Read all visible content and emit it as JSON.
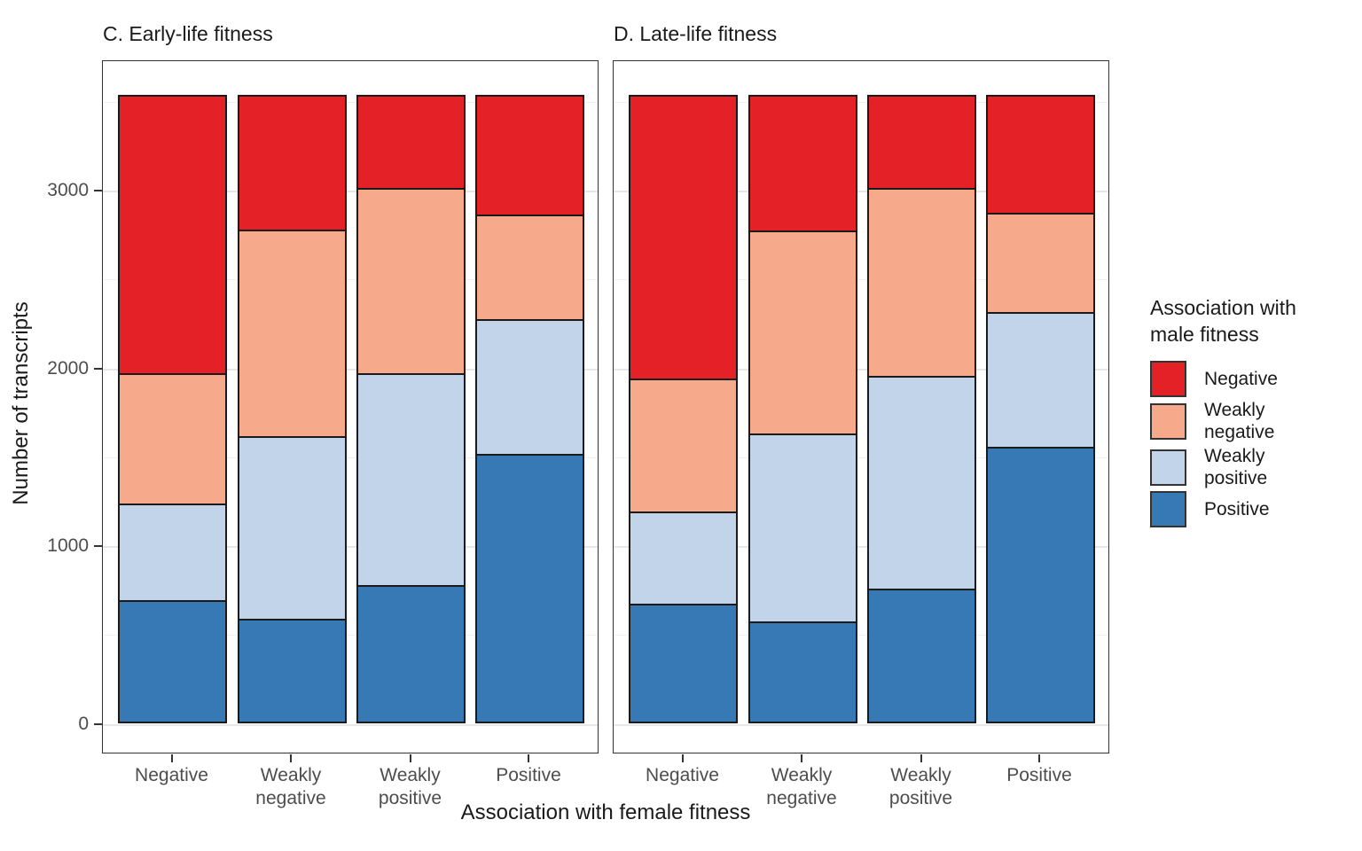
{
  "figure": {
    "y_axis": {
      "title": "Number of transcripts",
      "ticks": [
        "3000",
        "2000",
        "1000",
        "0"
      ],
      "tick_values": [
        3000,
        2000,
        1000,
        0
      ]
    },
    "x_axis": {
      "title": "Association with female fitness",
      "categories": [
        "Negative",
        "Weakly negative",
        "Weakly positive",
        "Positive"
      ],
      "category_tick_labels": [
        [
          "Negative"
        ],
        [
          "Weakly",
          "negative"
        ],
        [
          "Weakly",
          "positive"
        ],
        [
          "Positive"
        ]
      ]
    },
    "legend": {
      "title": "Association with\nmale fitness",
      "items": [
        {
          "label": "Negative",
          "color": "#E32126"
        },
        {
          "label": "Weakly negative",
          "color": "#F7A98C"
        },
        {
          "label": "Weakly positive",
          "color": "#C1D4EA"
        },
        {
          "label": "Positive",
          "color": "#3679B5"
        }
      ]
    },
    "colors": {
      "negative": "#E32126",
      "weakly_negative": "#F7A98C",
      "weakly_positive": "#C1D4EA",
      "positive": "#3679B5",
      "segment_border": "#1A1A1A",
      "panel_border": "#333333",
      "gridline_major": "#E7E7E7",
      "tick_label": "#4D4D4D"
    }
  },
  "chart_data": [
    {
      "type": "bar",
      "stacked": true,
      "title": "C. Early-life fitness",
      "categories": [
        "Negative",
        "Weakly negative",
        "Weakly positive",
        "Positive"
      ],
      "series_note": "series listed top-to-bottom of each stack; values are transcript counts per female-fitness category",
      "series": [
        {
          "name": "Negative",
          "color": "#E32126",
          "values": [
            1575,
            770,
            535,
            685
          ]
        },
        {
          "name": "Weakly negative",
          "color": "#F7A98C",
          "values": [
            745,
            1170,
            1050,
            595
          ]
        },
        {
          "name": "Weakly positive",
          "color": "#C1D4EA",
          "values": [
            555,
            1040,
            1205,
            770
          ]
        },
        {
          "name": "Positive",
          "color": "#3679B5",
          "values": [
            690,
            585,
            775,
            1515
          ]
        }
      ],
      "bar_totals": [
        3565,
        3565,
        3565,
        3565
      ],
      "xlabel": "Association with female fitness",
      "ylabel": "Number of transcripts",
      "ylim": [
        0,
        3730
      ],
      "grid": true,
      "legend_position": "right"
    },
    {
      "type": "bar",
      "stacked": true,
      "title": "D. Late-life fitness",
      "categories": [
        "Negative",
        "Weakly negative",
        "Weakly positive",
        "Positive"
      ],
      "series_note": "series listed top-to-bottom of each stack; values are transcript counts per female-fitness category",
      "series": [
        {
          "name": "Negative",
          "color": "#E32126",
          "values": [
            1605,
            775,
            535,
            675
          ]
        },
        {
          "name": "Weakly negative",
          "color": "#F7A98C",
          "values": [
            760,
            1150,
            1065,
            565
          ]
        },
        {
          "name": "Weakly positive",
          "color": "#C1D4EA",
          "values": [
            530,
            1070,
            1210,
            770
          ]
        },
        {
          "name": "Positive",
          "color": "#3679B5",
          "values": [
            670,
            570,
            755,
            1555
          ]
        }
      ],
      "bar_totals": [
        3565,
        3565,
        3565,
        3565
      ],
      "xlabel": "Association with female fitness",
      "ylabel": "Number of transcripts",
      "ylim": [
        0,
        3730
      ],
      "grid": true,
      "legend_position": "right"
    }
  ]
}
